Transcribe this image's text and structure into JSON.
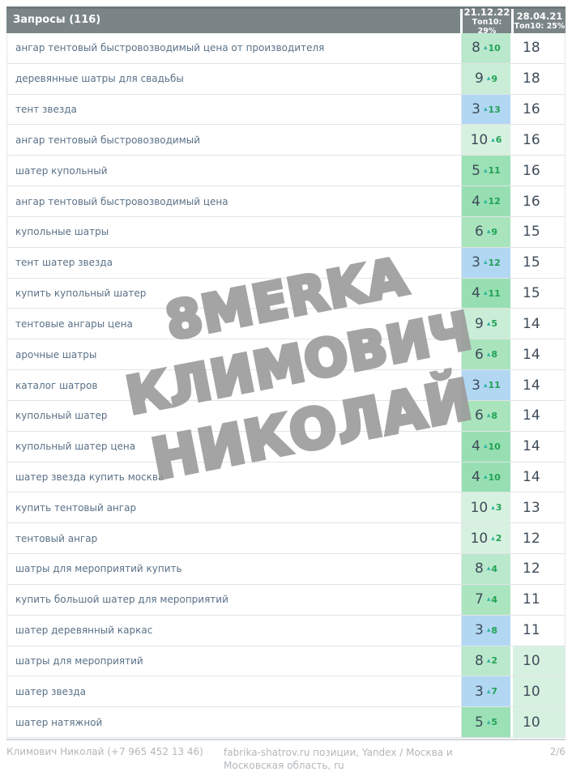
{
  "table": {
    "title": "Запросы (116)",
    "columns": [
      {
        "date": "21.12.22",
        "top10": "Топ10: 29%"
      },
      {
        "date": "28.04.21",
        "top10": "Топ10: 25%"
      }
    ],
    "rows": [
      {
        "query": "ангар тентовый быстровозводимый цена от производителя",
        "pos": "8",
        "delta": "10",
        "pos_bg": "#bae8cc",
        "val": "18",
        "val_bg": "#ffffff"
      },
      {
        "query": "деревянные шатры для свадьбы",
        "pos": "9",
        "delta": "9",
        "pos_bg": "#c9edd7",
        "val": "18",
        "val_bg": "#ffffff"
      },
      {
        "query": "тент звезда",
        "pos": "3",
        "delta": "13",
        "pos_bg": "#b2d7f2",
        "val": "16",
        "val_bg": "#ffffff"
      },
      {
        "query": "ангар тентовый быстровозводимый",
        "pos": "10",
        "delta": "6",
        "pos_bg": "#d7f1e0",
        "val": "16",
        "val_bg": "#ffffff"
      },
      {
        "query": "шатер купольный",
        "pos": "5",
        "delta": "11",
        "pos_bg": "#9ce1b6",
        "val": "16",
        "val_bg": "#ffffff"
      },
      {
        "query": "ангар тентовый быстровозводимый цена",
        "pos": "4",
        "delta": "12",
        "pos_bg": "#97dfb2",
        "val": "16",
        "val_bg": "#ffffff"
      },
      {
        "query": "купольные шатры",
        "pos": "6",
        "delta": "9",
        "pos_bg": "#a9e4bd",
        "val": "15",
        "val_bg": "#ffffff"
      },
      {
        "query": "тент шатер звезда",
        "pos": "3",
        "delta": "12",
        "pos_bg": "#b2d7f2",
        "val": "15",
        "val_bg": "#ffffff"
      },
      {
        "query": "купить купольный шатер",
        "pos": "4",
        "delta": "11",
        "pos_bg": "#97dfb2",
        "val": "15",
        "val_bg": "#ffffff"
      },
      {
        "query": "тентовые ангары цена",
        "pos": "9",
        "delta": "5",
        "pos_bg": "#c9edd7",
        "val": "14",
        "val_bg": "#ffffff"
      },
      {
        "query": "арочные шатры",
        "pos": "6",
        "delta": "8",
        "pos_bg": "#a9e4bd",
        "val": "14",
        "val_bg": "#ffffff"
      },
      {
        "query": "каталог шатров",
        "pos": "3",
        "delta": "11",
        "pos_bg": "#b2d7f2",
        "val": "14",
        "val_bg": "#ffffff"
      },
      {
        "query": "купольный шатер",
        "pos": "6",
        "delta": "8",
        "pos_bg": "#a9e4bd",
        "val": "14",
        "val_bg": "#ffffff"
      },
      {
        "query": "купольный шатер цена",
        "pos": "4",
        "delta": "10",
        "pos_bg": "#97dfb2",
        "val": "14",
        "val_bg": "#ffffff"
      },
      {
        "query": "шатер звезда купить москва",
        "pos": "4",
        "delta": "10",
        "pos_bg": "#97dfb2",
        "val": "14",
        "val_bg": "#ffffff"
      },
      {
        "query": "купить тентовый ангар",
        "pos": "10",
        "delta": "3",
        "pos_bg": "#d7f1e0",
        "val": "13",
        "val_bg": "#ffffff"
      },
      {
        "query": "тентовый ангар",
        "pos": "10",
        "delta": "2",
        "pos_bg": "#d7f1e0",
        "val": "12",
        "val_bg": "#ffffff"
      },
      {
        "query": "шатры для мероприятий купить",
        "pos": "8",
        "delta": "4",
        "pos_bg": "#bae8cc",
        "val": "12",
        "val_bg": "#ffffff"
      },
      {
        "query": "купить большой шатер для мероприятий",
        "pos": "7",
        "delta": "4",
        "pos_bg": "#abe5bf",
        "val": "11",
        "val_bg": "#ffffff"
      },
      {
        "query": "шатер деревянный каркас",
        "pos": "3",
        "delta": "8",
        "pos_bg": "#b2d7f2",
        "val": "11",
        "val_bg": "#ffffff"
      },
      {
        "query": "шатры для мероприятий",
        "pos": "8",
        "delta": "2",
        "pos_bg": "#bae8cc",
        "val": "10",
        "val_bg": "#d7f1e0"
      },
      {
        "query": "шатер звезда",
        "pos": "3",
        "delta": "7",
        "pos_bg": "#b2d7f2",
        "val": "10",
        "val_bg": "#d7f1e0"
      },
      {
        "query": "шатер натяжной",
        "pos": "5",
        "delta": "5",
        "pos_bg": "#9ce1b6",
        "val": "10",
        "val_bg": "#d7f1e0"
      }
    ]
  },
  "icons": {
    "up_arrow": "▴"
  },
  "colors": {
    "header_bg": "#7b8588",
    "header_top_border": "#6e787b",
    "top3_blue": "#b2d7f2",
    "delta_arrow_teal": "#2fb3a0",
    "delta_green": "#21a155",
    "value_text": "#3e4c59",
    "query_text": "#5a7187",
    "row_border": "#e1e4e7",
    "watermark_gray": "#9b9b9b",
    "footer_text": "#b3b7bb"
  },
  "watermark": {
    "lines": [
      "8MERKA",
      "КЛИМОВИЧ",
      "НИКОЛАЙ"
    ]
  },
  "footer": {
    "left": "Климович Николай (+7 965 452 13 46)",
    "center": "fabrika-shatrov.ru позиции, Yandex / Москва и Московская область, ru",
    "page": "2/6"
  }
}
